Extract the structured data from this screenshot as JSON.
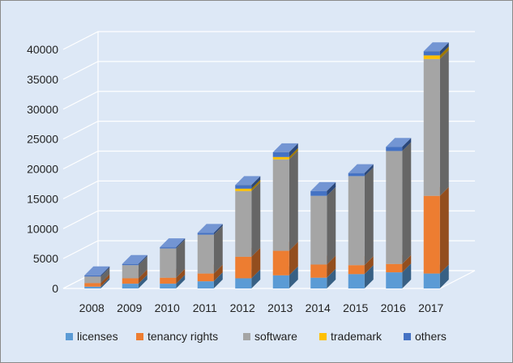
{
  "chart_data": {
    "type": "bar",
    "stacked": true,
    "style": "3d-column",
    "title": "",
    "xlabel": "",
    "ylabel": "",
    "categories": [
      "2008",
      "2009",
      "2010",
      "2011",
      "2012",
      "2013",
      "2014",
      "2015",
      "2016",
      "2017"
    ],
    "series": [
      {
        "name": "licenses",
        "color": "#5b9bd5",
        "values": [
          300,
          800,
          800,
          1200,
          1700,
          2200,
          1800,
          2400,
          2700,
          2500
        ]
      },
      {
        "name": "tenancy rights",
        "color": "#ed7d31",
        "values": [
          600,
          900,
          1000,
          1300,
          3600,
          4100,
          2200,
          1500,
          1400,
          13000
        ]
      },
      {
        "name": "software",
        "color": "#a5a5a5",
        "values": [
          1100,
          2200,
          4900,
          6500,
          11000,
          15300,
          11500,
          14900,
          18900,
          22900
        ]
      },
      {
        "name": "trademark",
        "color": "#ffc000",
        "values": [
          0,
          0,
          0,
          0,
          400,
          400,
          0,
          0,
          0,
          600
        ]
      },
      {
        "name": "others",
        "color": "#4472c4",
        "values": [
          200,
          200,
          200,
          300,
          600,
          800,
          800,
          500,
          700,
          700
        ]
      }
    ],
    "ylim": [
      0,
      40000
    ],
    "yticks": [
      0,
      5000,
      10000,
      15000,
      20000,
      25000,
      30000,
      35000,
      40000
    ],
    "grid": true,
    "legend": "bottom"
  }
}
